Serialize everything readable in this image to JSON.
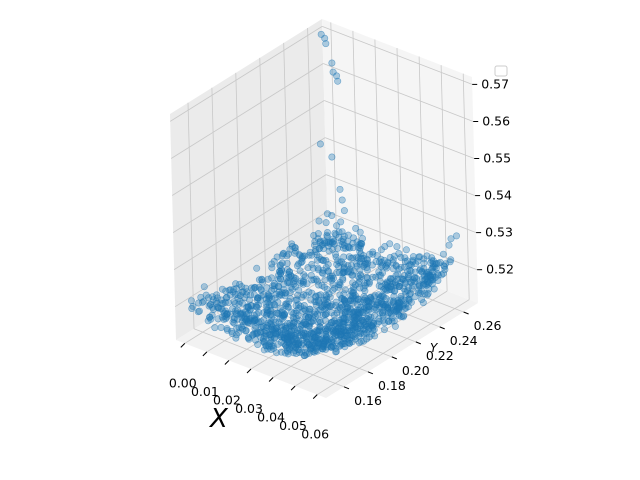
{
  "chart_data": {
    "type": "scatter",
    "projection": "3d",
    "title": "",
    "xlabel": "X",
    "ylabel": "Y",
    "zlabel": "",
    "xlim": [
      -0.004,
      0.064
    ],
    "ylim": [
      0.145,
      0.272
    ],
    "zlim": [
      0.511,
      0.572
    ],
    "x_ticks": [
      "0.00",
      "0.01",
      "0.02",
      "0.03",
      "0.04",
      "0.05",
      "0.06"
    ],
    "y_ticks": [
      "0.16",
      "0.18",
      "0.20",
      "0.22",
      "0.24",
      "0.26"
    ],
    "z_ticks": [
      "0.52",
      "0.53",
      "0.54",
      "0.55",
      "0.56",
      "0.57"
    ],
    "grid": true,
    "legend": {
      "placement": "upper right",
      "entries": []
    },
    "series": [
      {
        "color": "#1f77b4",
        "alpha": 0.35,
        "cloud": {
          "description_values": "dense point surface spanning x 0.000–0.060, y 0.150–0.265, z ≈ 0.510–0.535",
          "x_range": [
            0.0,
            0.06
          ],
          "y_range": [
            0.15,
            0.265
          ],
          "z_base": 0.513,
          "z_curve": 0.02
        },
        "outliers": [
          {
            "x": 0.001,
            "y": 0.262,
            "z": 0.571
          },
          {
            "x": 0.002,
            "y": 0.263,
            "z": 0.57
          },
          {
            "x": 0.003,
            "y": 0.262,
            "z": 0.569
          },
          {
            "x": 0.005,
            "y": 0.263,
            "z": 0.564
          },
          {
            "x": 0.006,
            "y": 0.262,
            "z": 0.562
          },
          {
            "x": 0.007,
            "y": 0.263,
            "z": 0.561
          },
          {
            "x": 0.008,
            "y": 0.262,
            "z": 0.56
          },
          {
            "x": 0.006,
            "y": 0.25,
            "z": 0.545
          },
          {
            "x": 0.01,
            "y": 0.252,
            "z": 0.542
          },
          {
            "x": 0.02,
            "y": 0.24,
            "z": 0.538
          },
          {
            "x": 0.022,
            "y": 0.238,
            "z": 0.536
          },
          {
            "x": 0.024,
            "y": 0.236,
            "z": 0.534
          },
          {
            "x": 0.058,
            "y": 0.262,
            "z": 0.529
          },
          {
            "x": 0.057,
            "y": 0.262,
            "z": 0.527
          },
          {
            "x": 0.06,
            "y": 0.263,
            "z": 0.53
          },
          {
            "x": 0.055,
            "y": 0.255,
            "z": 0.523
          },
          {
            "x": 0.052,
            "y": 0.25,
            "z": 0.52
          }
        ]
      }
    ]
  }
}
